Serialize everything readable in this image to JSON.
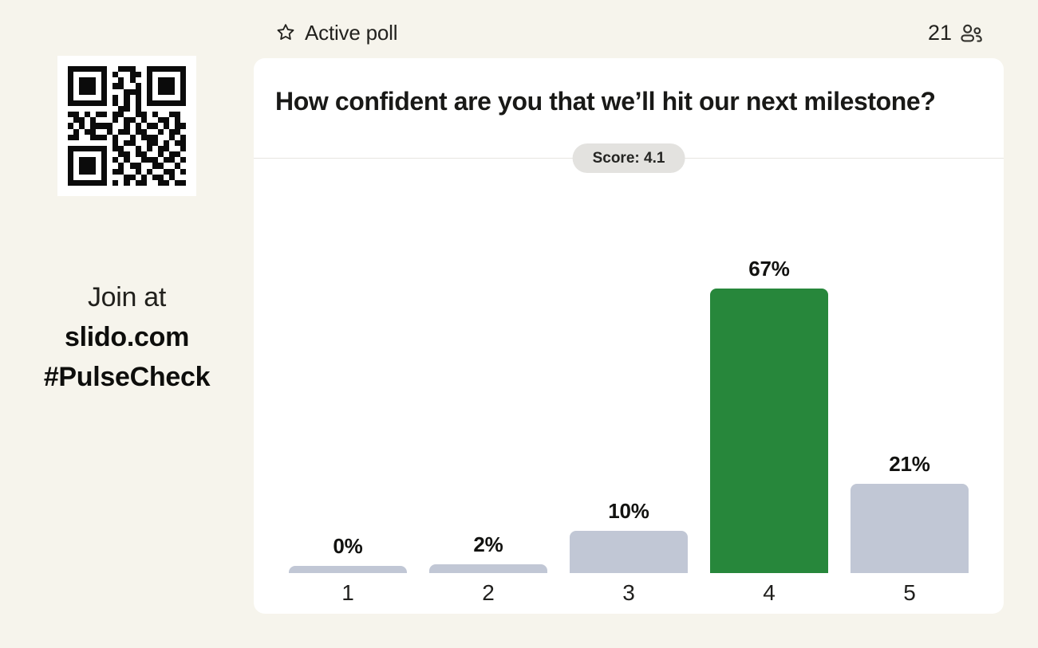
{
  "header": {
    "status_label": "Active poll",
    "participants_count": "21"
  },
  "join_panel": {
    "line1": "Join at",
    "line2": "slido.com",
    "line3": "#PulseCheck",
    "qr_matrix": [
      "111111100111001111111",
      "100000101001101000001",
      "101110100101001011101",
      "101110101100101011101",
      "101110100011101011101",
      "100000101010101000001",
      "111111101010101111111",
      "000000000110100000000",
      "110101101100110100110",
      "011010001011010011010",
      "101011110010101101011",
      "010110010110110010110",
      "110011101001011100101",
      "000000001011001101011",
      "111111101100101011001",
      "100000100110110010110",
      "101110101010011101101",
      "101110100101100110010",
      "101110101100101001101",
      "100000100011010110100",
      "111111101010110011011"
    ]
  },
  "poll": {
    "question": "How confident are you that we’ll hit our next milestone?",
    "score_label": "Score: 4.1"
  },
  "chart_data": {
    "type": "bar",
    "categories": [
      "1",
      "2",
      "3",
      "4",
      "5"
    ],
    "values": [
      0,
      2,
      10,
      67,
      21
    ],
    "value_labels": [
      "0%",
      "2%",
      "10%",
      "67%",
      "21%"
    ],
    "highlight_index": 3,
    "title": "How confident are you that we’ll hit our next milestone?",
    "xlabel": "",
    "ylabel": "",
    "ylim": [
      0,
      100
    ],
    "grid": false,
    "legend": false,
    "colors": {
      "bar_default": "#C1C7D5",
      "bar_highlight": "#27873B"
    }
  }
}
